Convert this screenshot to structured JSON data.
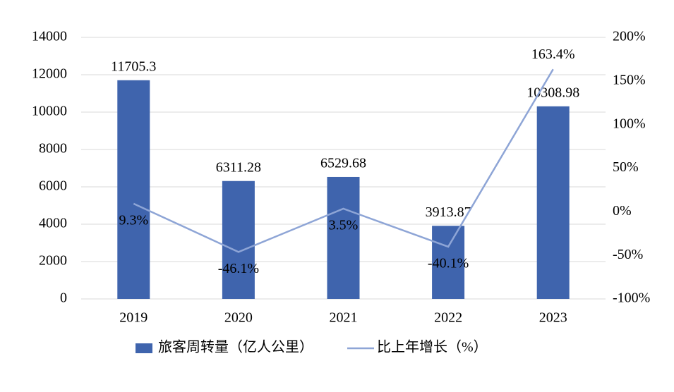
{
  "chart_data": {
    "type": "bar",
    "categories": [
      "2019",
      "2020",
      "2021",
      "2022",
      "2023"
    ],
    "series": [
      {
        "name": "旅客周转量（亿人公里）",
        "type": "bar",
        "color": "#3f64ad",
        "values": [
          11705.3,
          6311.28,
          6529.68,
          3913.87,
          10308.98
        ]
      },
      {
        "name": "比上年增长（%）",
        "type": "line",
        "axis": "y2",
        "color": "#8ea5d6",
        "values": [
          9.3,
          -46.1,
          3.5,
          -40.1,
          163.4
        ],
        "value_labels": [
          "9.3%",
          "-46.1%",
          "3.5%",
          "-40.1%",
          "163.4%"
        ]
      }
    ],
    "ylim": [
      0,
      14000
    ],
    "yticks": [
      0,
      2000,
      4000,
      6000,
      8000,
      10000,
      12000,
      14000
    ],
    "y2lim": [
      -100,
      200
    ],
    "y2ticks": [
      {
        "value": -100,
        "label": "-100%"
      },
      {
        "value": -50,
        "label": "-50%"
      },
      {
        "value": 0,
        "label": "0%"
      },
      {
        "value": 50,
        "label": "50%"
      },
      {
        "value": 100,
        "label": "100%"
      },
      {
        "value": 150,
        "label": "150%"
      },
      {
        "value": 200,
        "label": "200%"
      }
    ],
    "grid": true,
    "legend": "bottom"
  }
}
